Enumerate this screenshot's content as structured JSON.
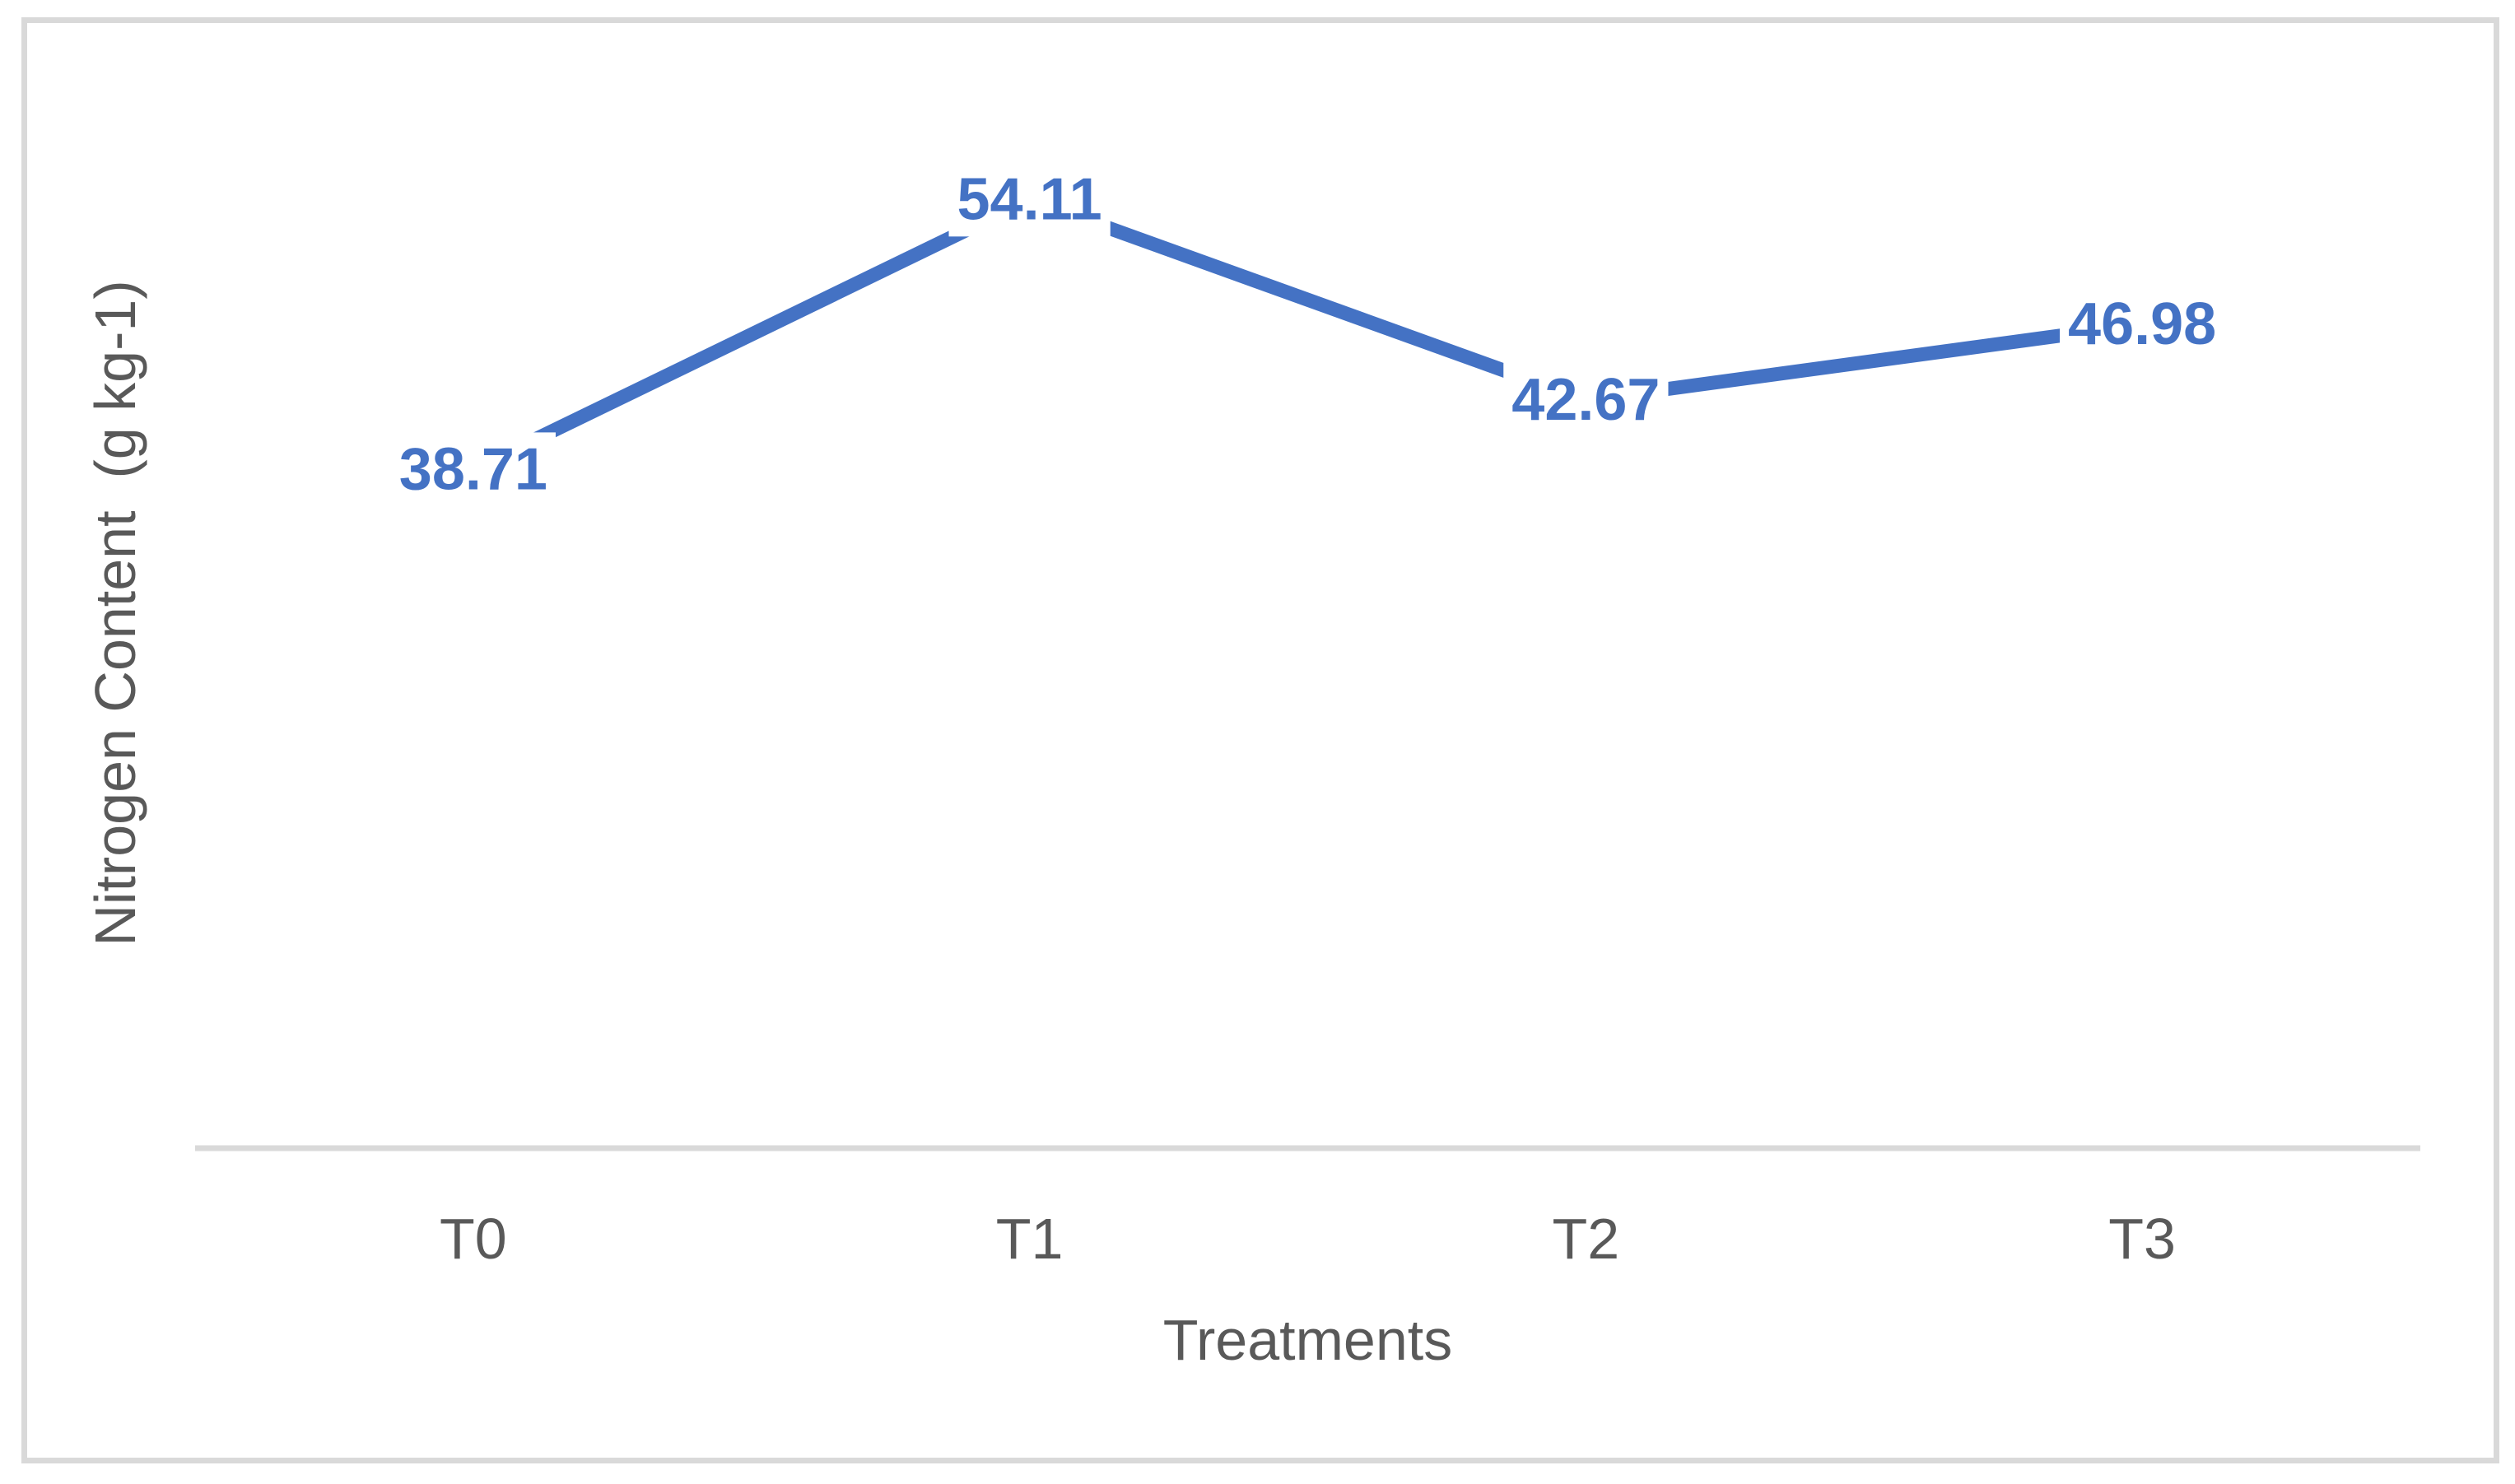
{
  "chart_data": {
    "type": "line",
    "title": "",
    "categories": [
      "T0",
      "T1",
      "T2",
      "T3"
    ],
    "values": [
      38.71,
      54.11,
      42.67,
      46.98
    ],
    "data_labels": [
      "38.71",
      "54.11",
      "42.67",
      "46.98"
    ],
    "xlabel": "Treatments",
    "ylabel": "Nitrogen Content  (g kg-1)",
    "ylim": [
      0,
      64.5
    ],
    "grid": false,
    "legend": "none",
    "series_color": "#4472C4",
    "data_label_color": "#4472C4",
    "axis_text_color": "#595959",
    "axis_line_color": "#D9D9D9",
    "frame_color": "#D9D9D9"
  }
}
